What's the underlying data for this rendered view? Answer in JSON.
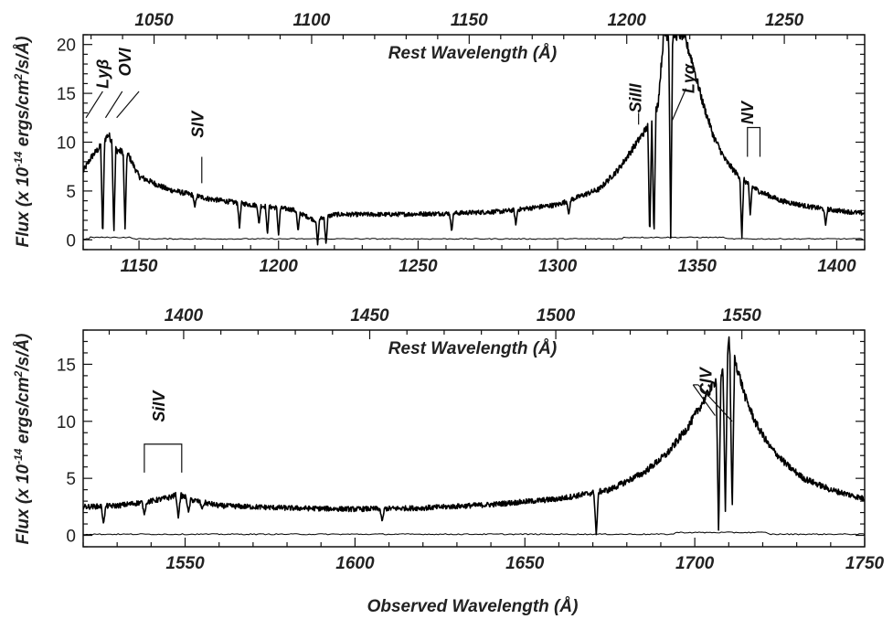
{
  "chart_data": [
    {
      "type": "line",
      "panel": "top",
      "top_axis_title": "Rest Wavelength (Å)",
      "ylabel": "Flux (x 10^-14 ergs/cm^2/s/Å)",
      "ylabel_parts": {
        "pre": "Flux (x 10",
        "exp": "-14",
        "mid": " ergs/cm",
        "exp2": "2",
        "post": "/s/Å)"
      },
      "xlim": [
        1130,
        1410
      ],
      "ylim": [
        -1,
        21
      ],
      "rest_xlim": [
        1027.5,
        1275.5
      ],
      "x_ticks": [
        1150,
        1200,
        1250,
        1300,
        1350,
        1400
      ],
      "x_tick_labels": [
        "1150",
        "1200",
        "1250",
        "1300",
        "1350",
        "1400"
      ],
      "rest_ticks": [
        1050,
        1100,
        1150,
        1200,
        1250
      ],
      "rest_tick_labels": [
        "1050",
        "1100",
        "1150",
        "1200",
        "1250"
      ],
      "y_ticks": [
        0,
        5,
        10,
        15,
        20
      ],
      "y_tick_labels": [
        "0",
        "5",
        "10",
        "15",
        "20"
      ],
      "continuum": [
        [
          1130,
          7
        ],
        [
          1133,
          8.5
        ],
        [
          1136,
          9.5
        ],
        [
          1139,
          10.8
        ],
        [
          1142,
          9.2
        ],
        [
          1146,
          8.8
        ],
        [
          1150,
          6.5
        ],
        [
          1160,
          5.2
        ],
        [
          1175,
          4.2
        ],
        [
          1190,
          3.6
        ],
        [
          1205,
          3.1
        ],
        [
          1213,
          2.0
        ],
        [
          1220,
          2.6
        ],
        [
          1240,
          2.6
        ],
        [
          1260,
          2.7
        ],
        [
          1280,
          2.9
        ],
        [
          1300,
          3.6
        ],
        [
          1315,
          5.2
        ],
        [
          1322,
          7.3
        ],
        [
          1328,
          9.8
        ],
        [
          1332,
          11.5
        ],
        [
          1334,
          12.0
        ],
        [
          1336,
          14.0
        ],
        [
          1338,
          21
        ],
        [
          1342,
          21
        ],
        [
          1345,
          21
        ],
        [
          1348,
          18.5
        ],
        [
          1352,
          14
        ],
        [
          1356,
          10.5
        ],
        [
          1360,
          8.2
        ],
        [
          1364,
          6.8
        ],
        [
          1368,
          5.8
        ],
        [
          1372,
          5.0
        ],
        [
          1376,
          4.5
        ],
        [
          1380,
          4.0
        ],
        [
          1390,
          3.4
        ],
        [
          1400,
          3.0
        ],
        [
          1410,
          2.7
        ]
      ],
      "absorptions": [
        [
          1137,
          0
        ],
        [
          1141,
          0.5
        ],
        [
          1145,
          1
        ],
        [
          1170,
          3.3
        ],
        [
          1186,
          1.2
        ],
        [
          1193,
          1.5
        ],
        [
          1196,
          0.5
        ],
        [
          1200,
          0.5
        ],
        [
          1207,
          0.8
        ],
        [
          1214,
          -0.5
        ],
        [
          1217,
          -0.5
        ],
        [
          1262,
          0.8
        ],
        [
          1285,
          1.5
        ],
        [
          1304,
          2.5
        ],
        [
          1333,
          0
        ],
        [
          1334.5,
          0
        ],
        [
          1340.5,
          0
        ],
        [
          1366,
          0
        ],
        [
          1369,
          2.5
        ],
        [
          1396,
          1.5
        ]
      ],
      "error_level": 0.1,
      "labels": [
        {
          "text": "Lyβ",
          "x": 1139,
          "y": 17,
          "rotate": -90
        },
        {
          "text": "OVI",
          "x": 1147,
          "y": 18.2,
          "rotate": -90
        },
        {
          "text": "SIV",
          "x": 1173,
          "y": 11.8,
          "rotate": -90
        },
        {
          "text": "SiIII",
          "x": 1330,
          "y": 14.5,
          "rotate": -90
        },
        {
          "text": "Lyα",
          "x": 1349,
          "y": 16.5,
          "rotate": -90
        },
        {
          "text": "NV",
          "x": 1370,
          "y": 13,
          "rotate": -90
        }
      ]
    },
    {
      "type": "line",
      "panel": "bottom",
      "top_axis_title": "Rest Wavelength (Å)",
      "xlabel": "Observed Wavelength (Å)",
      "ylabel": "Flux (x 10^-14 ergs/cm^2/s/Å)",
      "ylabel_parts": {
        "pre": "Flux (x 10",
        "exp": "-14",
        "mid": " ergs/cm",
        "exp2": "2",
        "post": "/s/Å)"
      },
      "xlim": [
        1520,
        1750
      ],
      "ylim": [
        -1,
        18
      ],
      "rest_xlim": [
        1373,
        1583
      ],
      "x_ticks": [
        1550,
        1600,
        1650,
        1700,
        1750
      ],
      "x_tick_labels": [
        "1550",
        "1600",
        "1650",
        "1700",
        "1750"
      ],
      "rest_ticks": [
        1400,
        1450,
        1500,
        1550
      ],
      "rest_tick_labels": [
        "1400",
        "1450",
        "1500",
        "1550"
      ],
      "y_ticks": [
        0,
        5,
        10,
        15
      ],
      "y_tick_labels": [
        "0",
        "5",
        "10",
        "15"
      ],
      "continuum": [
        [
          1520,
          2.5
        ],
        [
          1530,
          2.6
        ],
        [
          1540,
          3.0
        ],
        [
          1545,
          3.3
        ],
        [
          1548,
          3.6
        ],
        [
          1552,
          3.1
        ],
        [
          1560,
          2.6
        ],
        [
          1580,
          2.4
        ],
        [
          1600,
          2.3
        ],
        [
          1620,
          2.4
        ],
        [
          1640,
          2.7
        ],
        [
          1660,
          3.2
        ],
        [
          1675,
          4.0
        ],
        [
          1685,
          5.5
        ],
        [
          1692,
          7.2
        ],
        [
          1698,
          9.5
        ],
        [
          1703,
          12
        ],
        [
          1706,
          13.5
        ],
        [
          1708,
          14
        ],
        [
          1710,
          17
        ],
        [
          1712,
          15.2
        ],
        [
          1715,
          12
        ],
        [
          1718,
          9.8
        ],
        [
          1722,
          7.8
        ],
        [
          1727,
          6.2
        ],
        [
          1732,
          5.0
        ],
        [
          1740,
          4.0
        ],
        [
          1750,
          3.2
        ]
      ],
      "absorptions": [
        [
          1526,
          1.0
        ],
        [
          1538,
          1.8
        ],
        [
          1548,
          1.5
        ],
        [
          1551,
          2.0
        ],
        [
          1555,
          2.3
        ],
        [
          1608,
          1.2
        ],
        [
          1671,
          0
        ],
        [
          1707,
          0
        ],
        [
          1709,
          2
        ],
        [
          1711,
          2
        ]
      ],
      "error_level": 0.1,
      "labels": [
        {
          "text": "SiIV",
          "x": 1544,
          "y": 11.3,
          "rotate": -90
        },
        {
          "text": "CIV",
          "x": 1705,
          "y": 13.5,
          "rotate": -90
        }
      ]
    }
  ]
}
